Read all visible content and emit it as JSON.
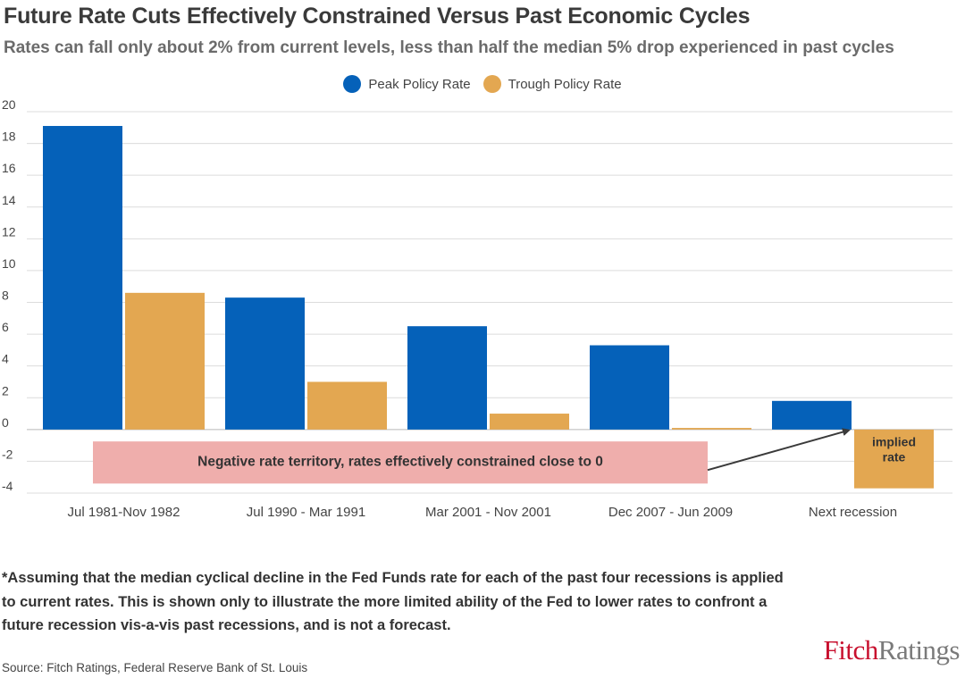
{
  "title": "Future Rate Cuts Effectively Constrained Versus Past Economic Cycles",
  "subtitle": "Rates can fall only about 2% from current levels, less than half the median 5% drop experienced in past cycles",
  "legend": [
    {
      "label": "Peak Policy Rate",
      "color": "#0561b9"
    },
    {
      "label": "Trough Policy Rate",
      "color": "#e3a751"
    }
  ],
  "chart_data": {
    "type": "bar",
    "categories": [
      "Jul 1981-Nov 1982",
      "Jul 1990 - Mar 1991",
      "Mar 2001 - Nov 2001",
      "Dec 2007 - Jun 2009",
      "Next recession"
    ],
    "series": [
      {
        "name": "Peak Policy Rate",
        "color": "#0561b9",
        "values": [
          19.1,
          8.3,
          6.5,
          5.3,
          1.8
        ]
      },
      {
        "name": "Trough Policy Rate",
        "color": "#e3a751",
        "values": [
          8.6,
          3.0,
          1.0,
          0.1,
          -3.7
        ]
      }
    ],
    "ylim": [
      -4,
      20
    ],
    "yticks": [
      -4,
      -2,
      0,
      2,
      4,
      6,
      8,
      10,
      12,
      14,
      16,
      18,
      20
    ],
    "grid": true,
    "annotations": [
      {
        "text": "Negative rate territory, rates effectively constrained close to 0",
        "color": "#efaeac"
      },
      {
        "text": "implied rate"
      }
    ]
  },
  "footnote": "*Assuming that the median cyclical decline in the Fed Funds rate for each of the past four recessions is applied to current rates. This is shown only to illustrate the more limited ability of the Fed to lower rates to confront a future recession vis-a-vis past recessions, and is not a forecast.",
  "source": "Source:  Fitch Ratings, Federal Reserve Bank of St. Louis",
  "logo": {
    "part1": "Fitch",
    "part2": "Ratings"
  }
}
